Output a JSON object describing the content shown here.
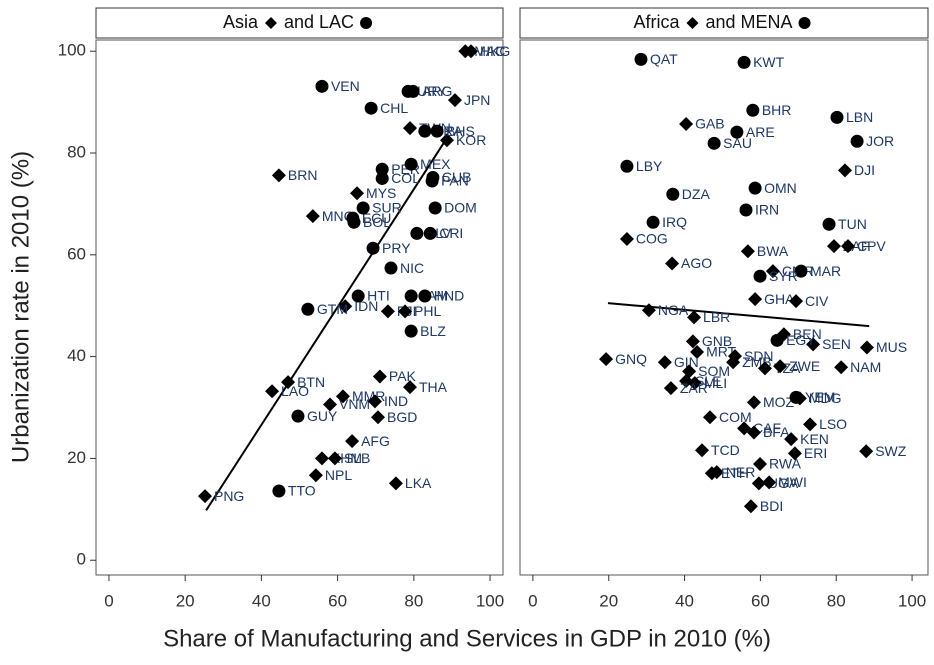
{
  "x_label": "Share of Manufacturing and Services in GDP in 2010 (%)",
  "y_label": "Urbanization rate in 2010 (%)",
  "chart_data": [
    {
      "type": "scatter",
      "xlim": [
        -3.4,
        103.4
      ],
      "ylim": [
        -2.9,
        102.2
      ],
      "xticks": [
        0,
        20,
        40,
        60,
        80,
        100
      ],
      "yticks": [
        0,
        20,
        40,
        60,
        80,
        100
      ],
      "fit": {
        "x": [
          25.5,
          89
        ],
        "y": [
          9.8,
          83.3
        ]
      },
      "series": [
        {
          "name": "Asia",
          "marker": "diamond",
          "color": "#000000",
          "labels": [
            "PNG",
            "LAO",
            "BTN",
            "MNG",
            "BRN",
            "NPL",
            "KHM",
            "SLB",
            "VNM",
            "MMR",
            "IND",
            "BGD",
            "AFG",
            "PAK",
            "THA",
            "LKA",
            "IDN",
            "FJI",
            "PHL",
            "MYS",
            "TWN",
            "KOR",
            "JPN",
            "MAC",
            "HKG"
          ],
          "x": [
            25.2,
            42.8,
            47,
            53.5,
            44.6,
            54.3,
            55.9,
            59.3,
            58,
            61.4,
            69.8,
            70.6,
            63.8,
            71.1,
            79,
            75.3,
            62,
            73.2,
            77.7,
            65.1,
            79,
            88.7,
            90.8,
            93.5,
            95
          ],
          "y": [
            12.6,
            33.2,
            35,
            67.6,
            75.6,
            16.7,
            20,
            20,
            30.6,
            32.2,
            31.2,
            28.1,
            23.4,
            36.1,
            34,
            15.1,
            49.9,
            48.9,
            48.9,
            72.1,
            84.9,
            82.5,
            90.4,
            100,
            100
          ]
        },
        {
          "name": "and LAC",
          "marker": "circle",
          "color": "#000000",
          "labels": [
            "TTO",
            "GUY",
            "GTM",
            "HTI",
            "BLZ",
            "NIC",
            "PRY",
            "BOL",
            "ECU",
            "SUR",
            "SLV",
            "CRI",
            "DOM",
            "COL",
            "PER",
            "MEX",
            "PAN",
            "CUB",
            "JAM",
            "HND",
            "BRA",
            "BHS",
            "CHL",
            "VEN",
            "URY",
            "ARG"
          ],
          "x": [
            44.6,
            49.6,
            52.2,
            65.4,
            79.3,
            74,
            69.3,
            64.3,
            64,
            66.7,
            80.8,
            84.3,
            85.6,
            71.7,
            71.7,
            79.3,
            84.8,
            85,
            79.3,
            82.9,
            82.9,
            86.1,
            68.8,
            55.9,
            78.5,
            79.8
          ],
          "y": [
            13.6,
            28.3,
            49.3,
            51.9,
            45,
            57.4,
            61.3,
            66.4,
            67.2,
            69.2,
            64.2,
            64.2,
            69.2,
            75,
            76.8,
            77.8,
            74.5,
            75.2,
            51.9,
            51.9,
            84.3,
            84.3,
            88.8,
            93.1,
            92.1,
            92.1
          ]
        }
      ]
    },
    {
      "type": "scatter",
      "xlim": [
        -3.4,
        104.2
      ],
      "ylim": [
        -2.9,
        102.2
      ],
      "xticks": [
        0,
        20,
        40,
        60,
        80,
        100
      ],
      "fit": {
        "x": [
          19.8,
          88.7
        ],
        "y": [
          50.5,
          46
        ]
      },
      "series": [
        {
          "name": "Africa",
          "marker": "diamond",
          "color": "#000000",
          "labels": [
            "DJI",
            "GAB",
            "COG",
            "AGO",
            "BWA",
            "ZAF",
            "CPV",
            "GHA",
            "CMR",
            "CIV",
            "NGA",
            "LBR",
            "GNB",
            "BEN",
            "SEN",
            "MUS",
            "MRT",
            "GNQ",
            "GIN",
            "SDN",
            "ZMB",
            "TZA",
            "ZWE",
            "NAM",
            "SOM",
            "SLE",
            "MLI",
            "ZAR",
            "MOZ",
            "MDG",
            "COM",
            "LSO",
            "CAF",
            "BFA",
            "KEN",
            "TCD",
            "ERI",
            "SWZ",
            "RWA",
            "NER",
            "ETH",
            "UGA",
            "MWI",
            "BDI"
          ],
          "x": [
            82.3,
            40.4,
            24.8,
            36.7,
            56.7,
            79.4,
            83.1,
            58.6,
            63.3,
            69.4,
            30.6,
            42.5,
            42.2,
            66.2,
            73.9,
            88.1,
            43.3,
            19.3,
            34.8,
            53.3,
            52.8,
            61.2,
            65.2,
            81.3,
            41.2,
            40.4,
            42.7,
            36.4,
            58.3,
            70.4,
            46.7,
            73.1,
            55.7,
            58.3,
            68.1,
            44.6,
            69.1,
            87.9,
            59.9,
            48.5,
            47.2,
            59.6,
            62.3,
            57.5
          ],
          "y": [
            76.6,
            85.7,
            63.1,
            58.3,
            60.7,
            61.7,
            61.7,
            51.3,
            56.8,
            50.9,
            49.1,
            47.7,
            43,
            44.4,
            42.4,
            41.8,
            40.9,
            39.5,
            38.9,
            40.1,
            38.9,
            37.7,
            38.1,
            37.9,
            37.1,
            35.2,
            34.8,
            33.8,
            31,
            31.8,
            28.1,
            26.7,
            25.9,
            25.1,
            23.8,
            21.6,
            21,
            21.4,
            18.9,
            17.3,
            17.1,
            15.1,
            15.3,
            10.6
          ]
        },
        {
          "name": "and MENA",
          "marker": "circle",
          "color": "#000000",
          "labels": [
            "QAT",
            "KWT",
            "BHR",
            "LBN",
            "JOR",
            "ARE",
            "SAU",
            "LBY",
            "OMN",
            "DZA",
            "IRN",
            "IRQ",
            "TUN",
            "MAR",
            "SYR",
            "EGY",
            "YEM"
          ],
          "x": [
            28.5,
            55.7,
            58,
            80.2,
            85.5,
            53.8,
            47.8,
            24.8,
            58.6,
            36.9,
            56.2,
            31.7,
            78.1,
            70.7,
            59.9,
            64.4,
            69.4
          ],
          "y": [
            98.4,
            97.8,
            88.4,
            87,
            82.3,
            84.1,
            81.9,
            77.4,
            73.1,
            71.9,
            68.8,
            66.4,
            66,
            56.8,
            55.8,
            43.2,
            32
          ]
        }
      ]
    }
  ]
}
